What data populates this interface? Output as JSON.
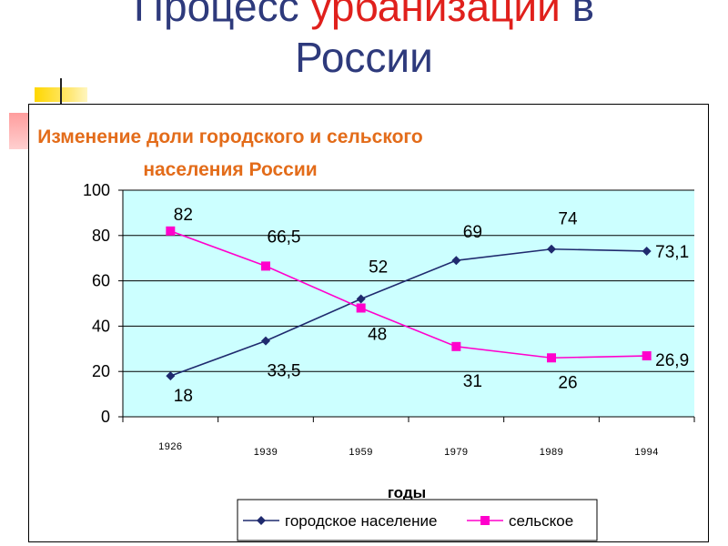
{
  "slide": {
    "title_part1": "Процесс",
    "title_part2": "урбанизации",
    "title_part3": "в",
    "title_line2": "России"
  },
  "colors": {
    "title": "#2e3a7c",
    "title_accent": "#e0201c",
    "chart_title": "#e36c1a",
    "plot_bg": "#ccffff",
    "urban": "#1f2a6e",
    "rural": "#ff00cc"
  },
  "chart_data": {
    "type": "line",
    "title_line1": "Изменение доли городского и сельского",
    "title_line2": "населения России",
    "xlabel": "годы",
    "ylabel": "",
    "categories": [
      "1926",
      "1939",
      "1959",
      "1979",
      "1989",
      "1994"
    ],
    "ylim": [
      0,
      100
    ],
    "yticks": [
      0,
      20,
      40,
      60,
      80,
      100
    ],
    "grid": true,
    "legend_position": "bottom",
    "series": [
      {
        "name": "городское население",
        "values": [
          18,
          33.5,
          52,
          69,
          74,
          73.1
        ],
        "labels": [
          "18",
          "33,5",
          "52",
          "69",
          "74",
          "73,1"
        ],
        "marker": "diamond"
      },
      {
        "name": "сельское",
        "values": [
          82,
          66.5,
          48,
          31,
          26,
          26.9
        ],
        "labels": [
          "82",
          "66,5",
          "48",
          "31",
          "26",
          "26,9"
        ],
        "marker": "square"
      }
    ]
  }
}
